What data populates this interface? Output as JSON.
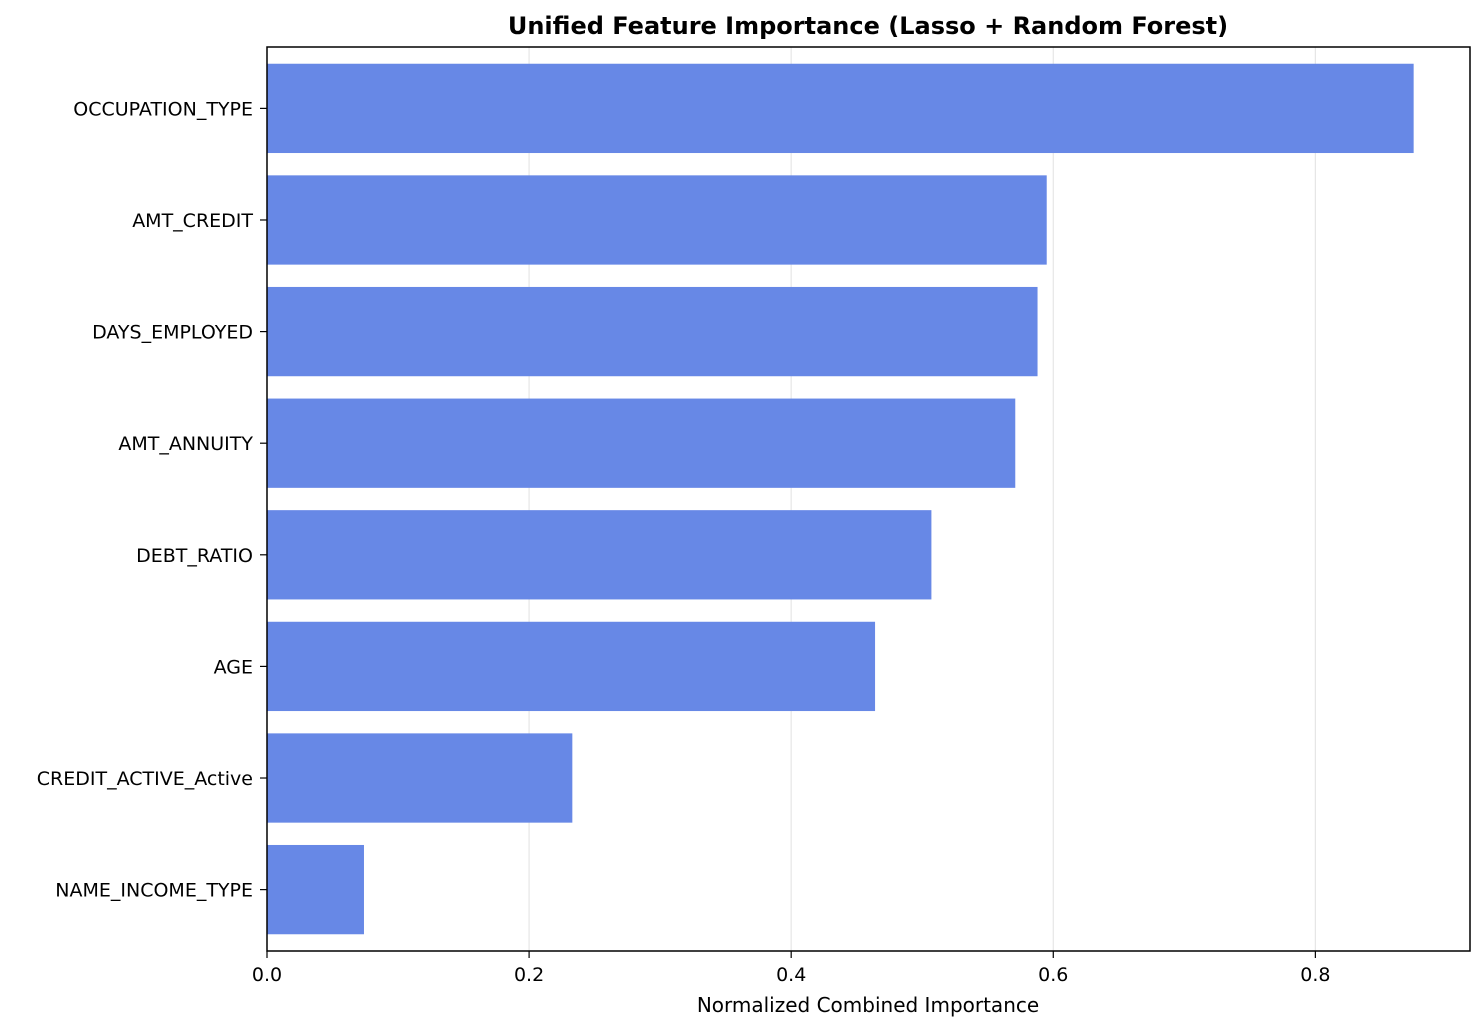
{
  "chart_data": {
    "type": "bar",
    "orientation": "horizontal",
    "title": "Unified Feature Importance (Lasso + Random Forest)",
    "xlabel": "Normalized Combined Importance",
    "ylabel": "",
    "xlim": [
      0,
      0.918
    ],
    "x_ticks": [
      0.0,
      0.2,
      0.4,
      0.6,
      0.8
    ],
    "x_tick_labels": [
      "0.0",
      "0.2",
      "0.4",
      "0.6",
      "0.8"
    ],
    "grid": "x",
    "bar_color": "#6788e6",
    "categories": [
      "OCCUPATION_TYPE",
      "AMT_CREDIT",
      "DAYS_EMPLOYED",
      "AMT_ANNUITY",
      "DEBT_RATIO",
      "AGE",
      "CREDIT_ACTIVE_Active",
      "NAME_INCOME_TYPE"
    ],
    "values": [
      0.875,
      0.595,
      0.588,
      0.571,
      0.507,
      0.464,
      0.233,
      0.074
    ]
  }
}
